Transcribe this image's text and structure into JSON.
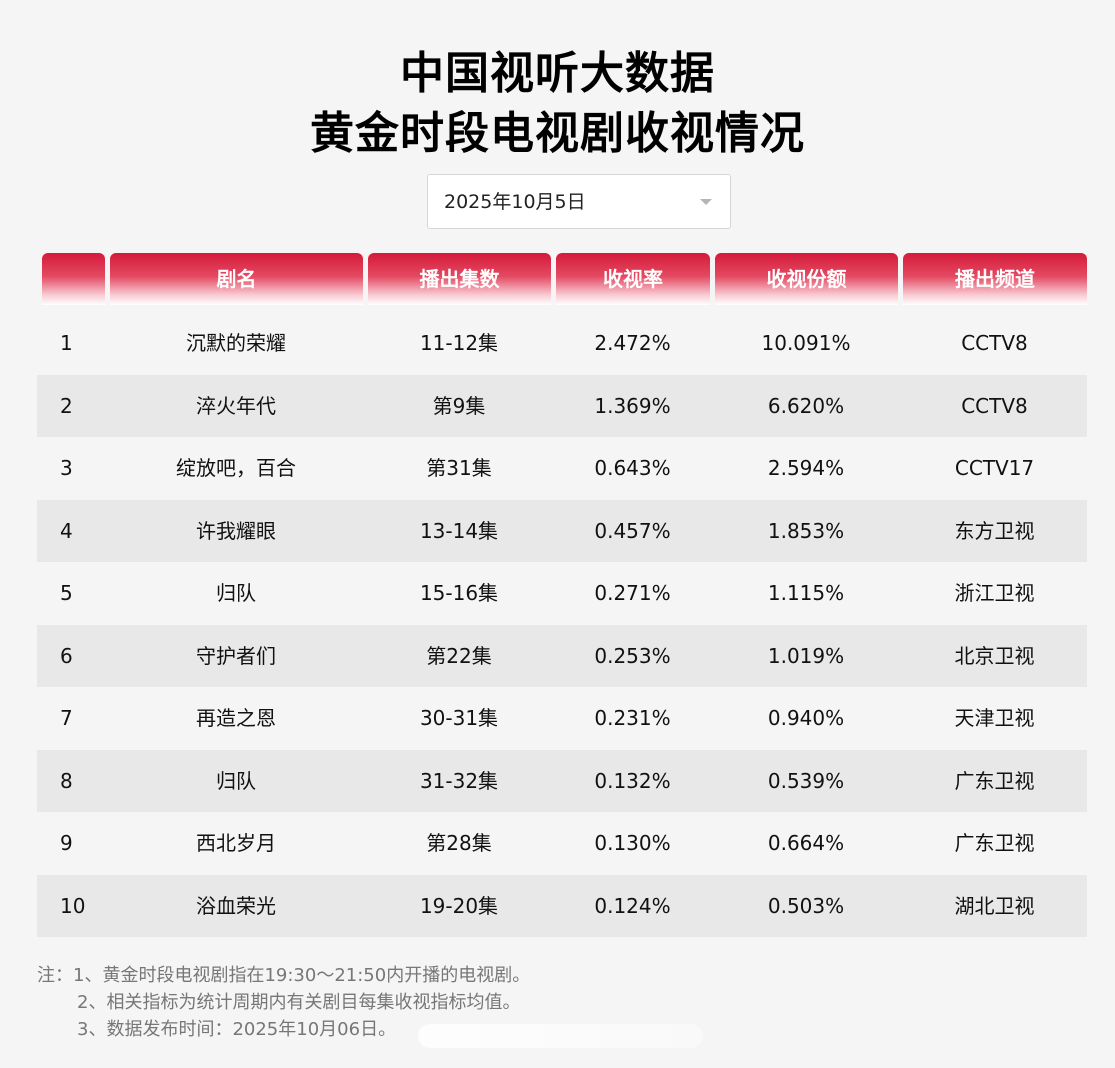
{
  "header": {
    "title_line1": "中国视听大数据",
    "title_line2": "黄金时段电视剧收视情况"
  },
  "date_picker": {
    "value": "2025年10月5日",
    "icon": "chevron-down-icon"
  },
  "table": {
    "columns": [
      "",
      "剧名",
      "播出集数",
      "收视率",
      "收视份额",
      "播出频道"
    ],
    "rows": [
      {
        "rank": "1",
        "name": "沉默的荣耀",
        "episodes": "11-12集",
        "rating": "2.472%",
        "share": "10.091%",
        "channel": "CCTV8"
      },
      {
        "rank": "2",
        "name": "淬火年代",
        "episodes": "第9集",
        "rating": "1.369%",
        "share": "6.620%",
        "channel": "CCTV8"
      },
      {
        "rank": "3",
        "name": "绽放吧，百合",
        "episodes": "第31集",
        "rating": "0.643%",
        "share": "2.594%",
        "channel": "CCTV17"
      },
      {
        "rank": "4",
        "name": "许我耀眼",
        "episodes": "13-14集",
        "rating": "0.457%",
        "share": "1.853%",
        "channel": "东方卫视"
      },
      {
        "rank": "5",
        "name": "归队",
        "episodes": "15-16集",
        "rating": "0.271%",
        "share": "1.115%",
        "channel": "浙江卫视"
      },
      {
        "rank": "6",
        "name": "守护者们",
        "episodes": "第22集",
        "rating": "0.253%",
        "share": "1.019%",
        "channel": "北京卫视"
      },
      {
        "rank": "7",
        "name": "再造之恩",
        "episodes": "30-31集",
        "rating": "0.231%",
        "share": "0.940%",
        "channel": "天津卫视"
      },
      {
        "rank": "8",
        "name": "归队",
        "episodes": "31-32集",
        "rating": "0.132%",
        "share": "0.539%",
        "channel": "广东卫视"
      },
      {
        "rank": "9",
        "name": "西北岁月",
        "episodes": "第28集",
        "rating": "0.130%",
        "share": "0.664%",
        "channel": "广东卫视"
      },
      {
        "rank": "10",
        "name": "浴血荣光",
        "episodes": "19-20集",
        "rating": "0.124%",
        "share": "0.503%",
        "channel": "湖北卫视"
      }
    ]
  },
  "notes": [
    "注：1、黄金时段电视剧指在19:30～21:50内开播的电视剧。",
    "2、相关指标为统计周期内有关剧目每集收视指标均值。",
    "3、数据发布时间：2025年10月06日。"
  ],
  "colors": {
    "header_red": "#d41a3a",
    "row_alt": "#e8e8e8",
    "background": "#f5f5f5"
  }
}
